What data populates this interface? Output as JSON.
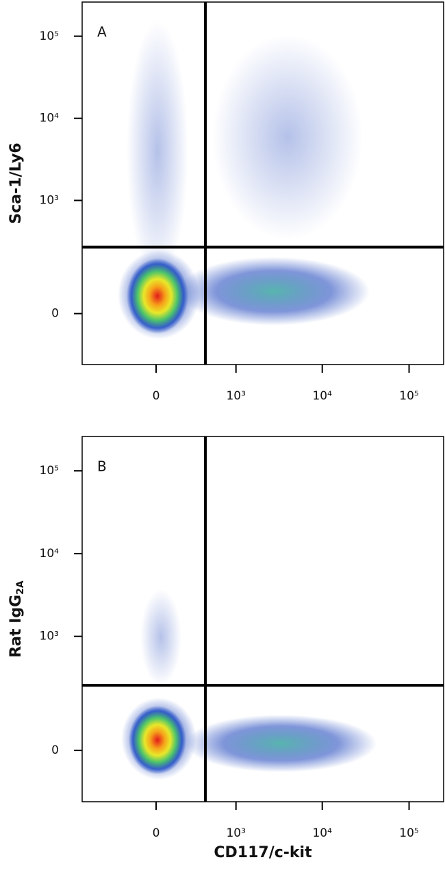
{
  "chart_data": [
    {
      "type": "scatter",
      "label": "A",
      "ylabel": "Sca-1/Ly6",
      "scale": "biexponential",
      "xlim": [
        -850,
        250000
      ],
      "ylim": [
        -165,
        260000
      ],
      "xticks": [
        0,
        {
          "value": 1000,
          "label": "10³"
        },
        {
          "value": 10000,
          "label": "10⁴"
        },
        {
          "value": 100000,
          "label": "10⁵"
        }
      ],
      "yticks": [
        0,
        {
          "value": 1000,
          "label": "10³"
        },
        {
          "value": 10000,
          "label": "10⁴"
        },
        {
          "value": 100000,
          "label": "10⁵"
        }
      ],
      "quadrant": [
        418,
        264
      ]
    },
    {
      "type": "scatter",
      "label": "B",
      "ylabel": "Rat IgG",
      "ylabel_subscript": "2A",
      "xlabel": "CD117/c-kit",
      "scale": "biexponential",
      "xlim": [
        -850,
        250000
      ],
      "ylim": [
        -165,
        260000
      ],
      "xticks": [
        0,
        {
          "value": 1000,
          "label": "10³"
        },
        {
          "value": 10000,
          "label": "10⁴"
        },
        {
          "value": 100000,
          "label": "10⁵"
        }
      ],
      "yticks": [
        0,
        {
          "value": 1000,
          "label": "10³"
        },
        {
          "value": 10000,
          "label": "10⁴"
        },
        {
          "value": 100000,
          "label": "10⁵"
        }
      ],
      "quadrant": [
        418,
        250
      ]
    }
  ]
}
